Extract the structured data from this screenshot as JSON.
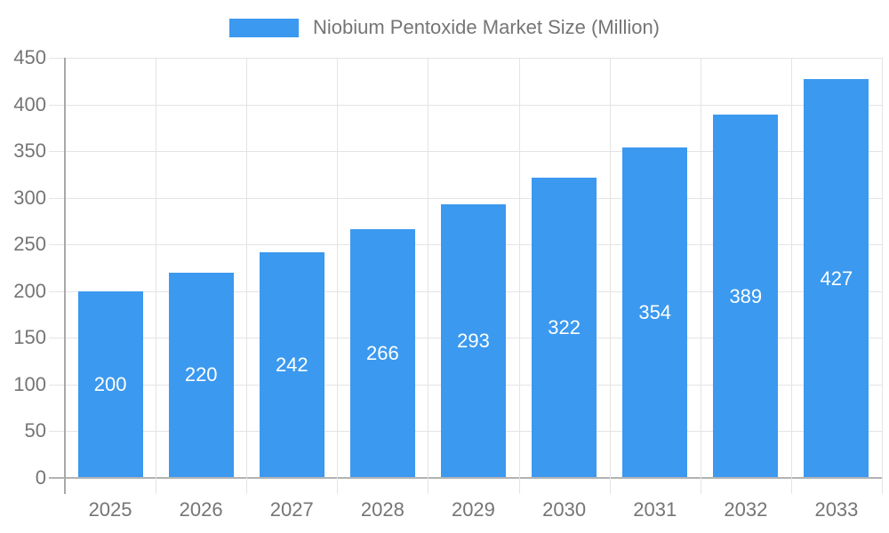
{
  "legend": {
    "label": "Niobium Pentoxide Market Size (Million)"
  },
  "chart_data": {
    "type": "bar",
    "title": "Niobium Pentoxide Market Size (Million)",
    "categories": [
      "2025",
      "2026",
      "2027",
      "2028",
      "2029",
      "2030",
      "2031",
      "2032",
      "2033"
    ],
    "series": [
      {
        "name": "Niobium Pentoxide Market Size (Million)",
        "values": [
          200,
          220,
          242,
          266,
          293,
          322,
          354,
          389,
          427
        ]
      }
    ],
    "value_labels": [
      "200",
      "220",
      "242",
      "266",
      "293",
      "322",
      "354",
      "389",
      "427"
    ],
    "xlabel": "",
    "ylabel": "",
    "ylim": [
      0,
      450
    ],
    "yticks": [
      0,
      50,
      100,
      150,
      200,
      250,
      300,
      350,
      400,
      450
    ],
    "grid": true,
    "legend_position": "top-center",
    "colors": {
      "bar": "#3B99EF",
      "value_label": "#FFFFFF",
      "axis_text": "#757575",
      "gridline": "#E4E4E4",
      "axis_line": "#A8A8A8",
      "baseline": "#B3B3B3",
      "background": "#FFFFFF"
    }
  }
}
